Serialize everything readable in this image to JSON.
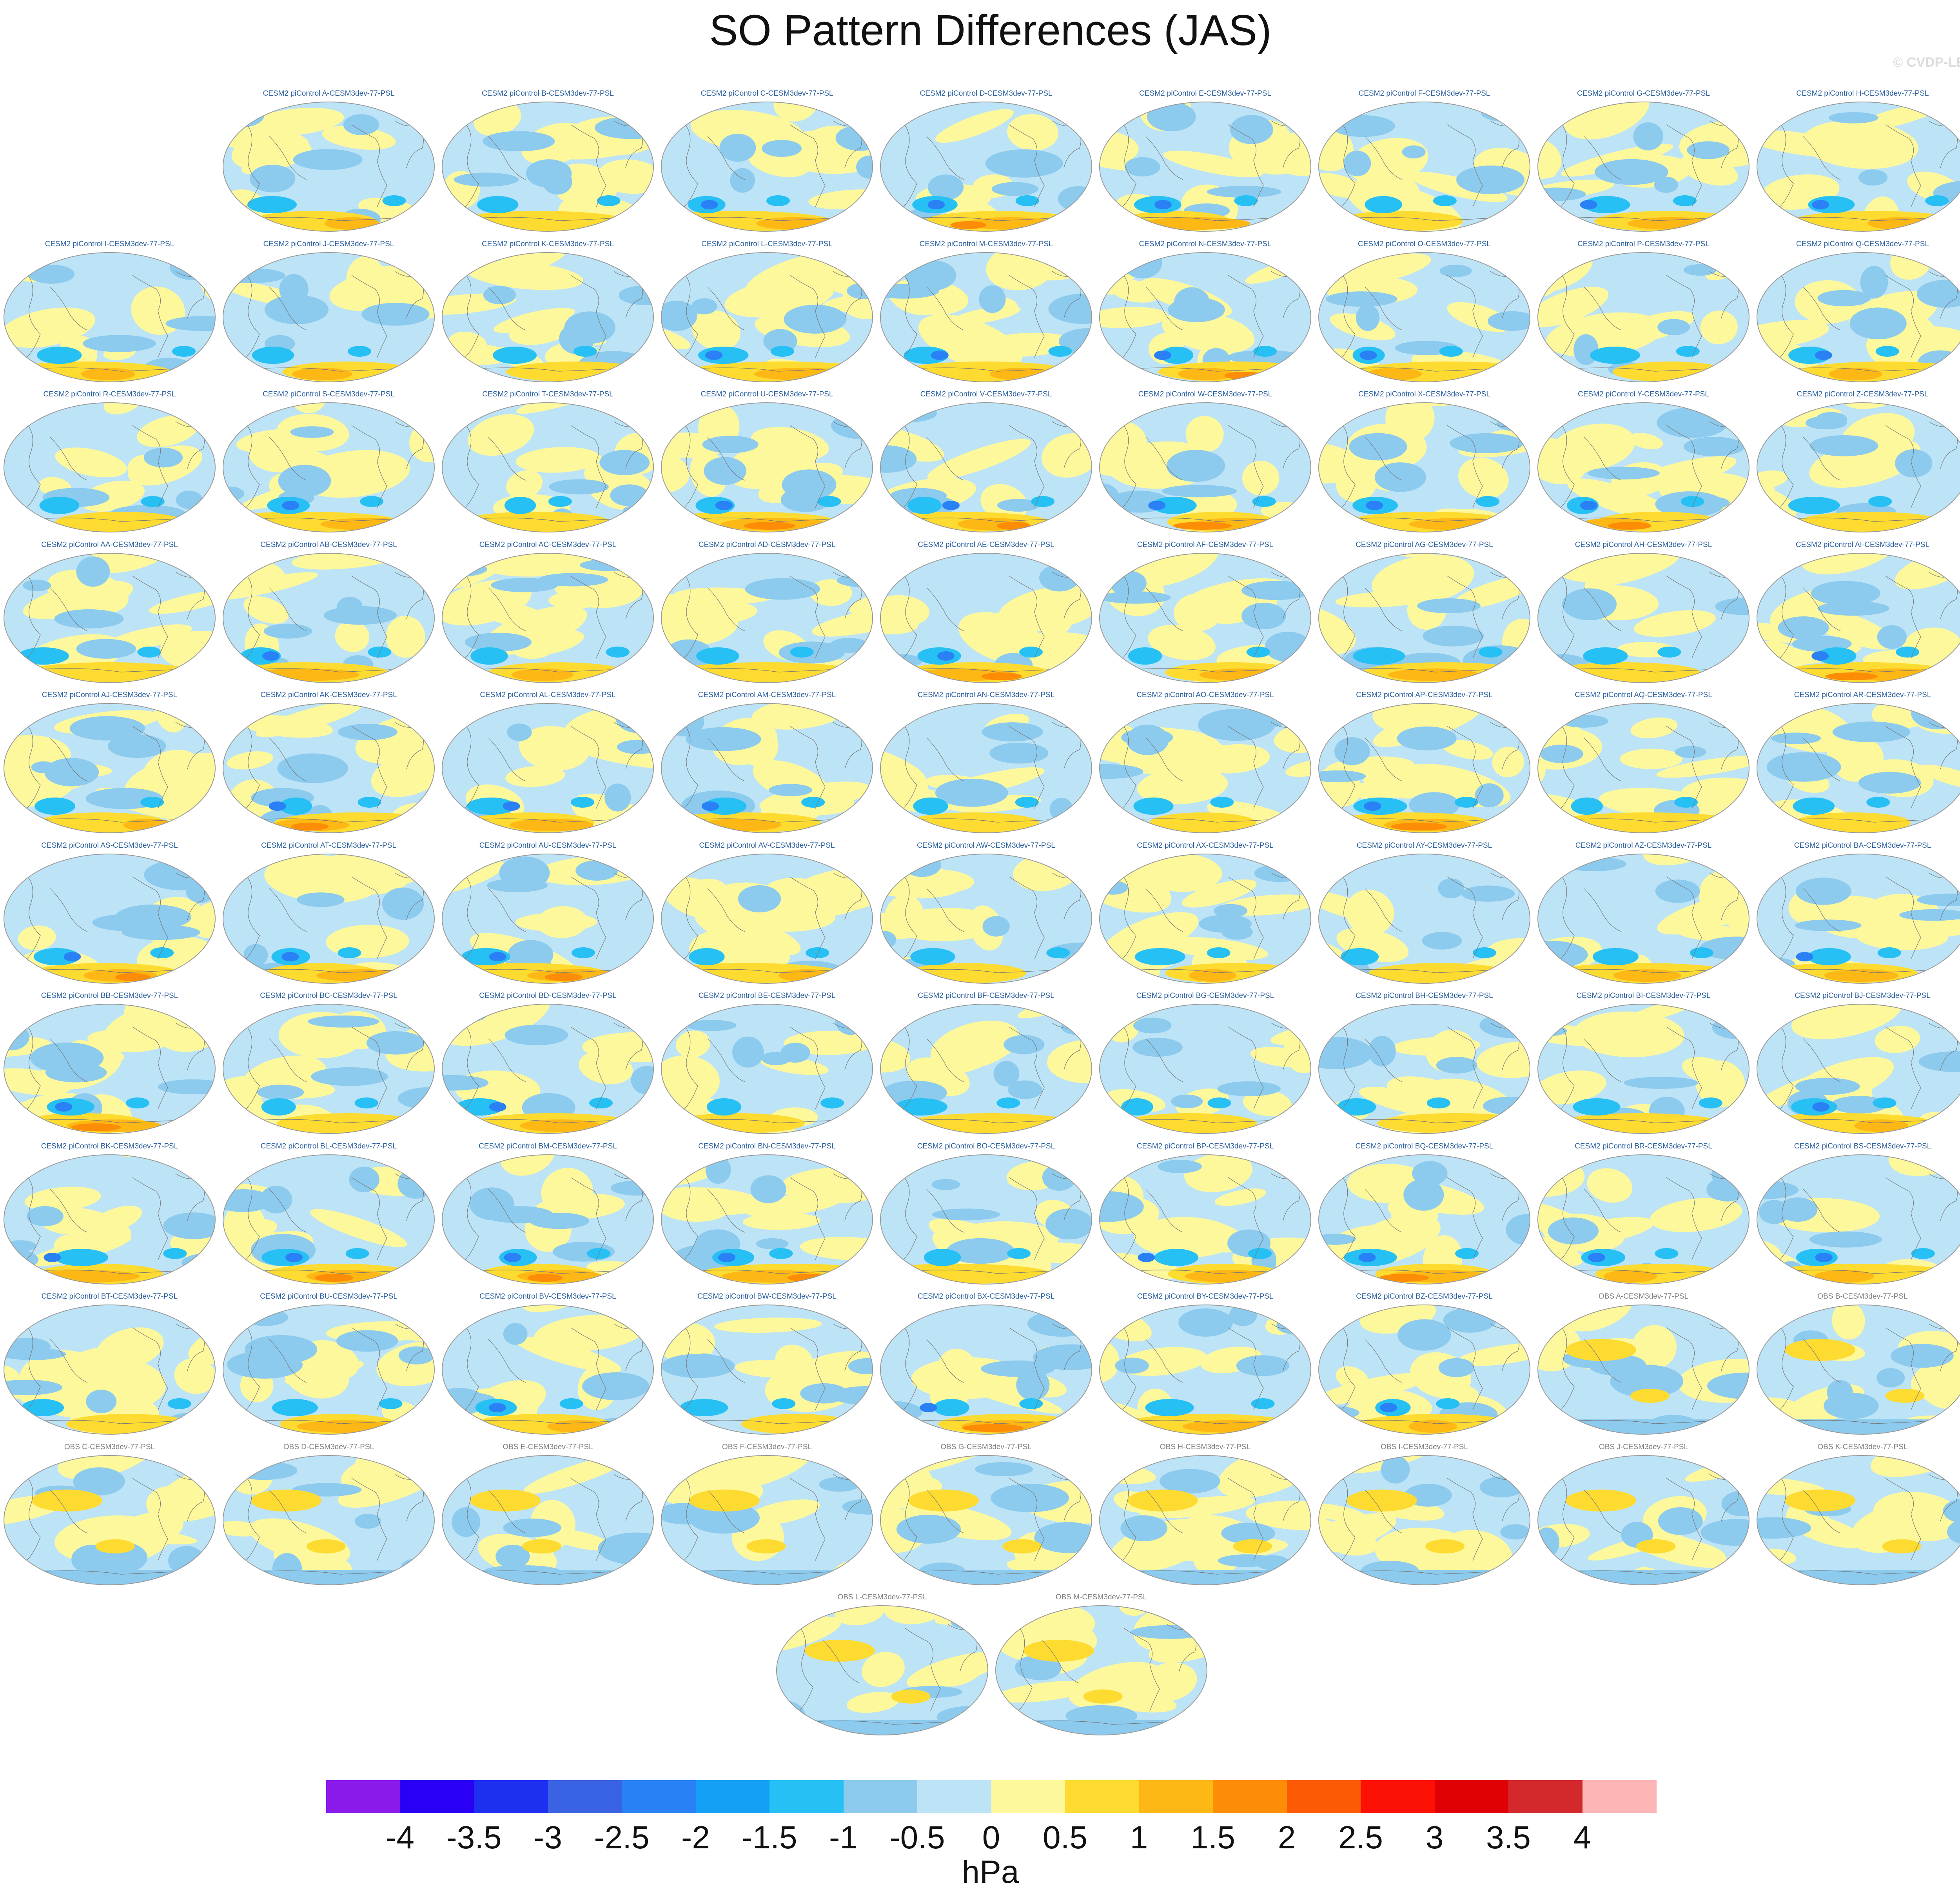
{
  "title": "SO Pattern Differences (JAS)",
  "copyright": "© CVDP-LE",
  "chart_data": {
    "type": "heatmap",
    "projection": "robinson",
    "variable": "PSL",
    "panels": [
      "CESM2 piControl A-CESM3dev-77-PSL",
      "CESM2 piControl B-CESM3dev-77-PSL",
      "CESM2 piControl C-CESM3dev-77-PSL",
      "CESM2 piControl D-CESM3dev-77-PSL",
      "CESM2 piControl E-CESM3dev-77-PSL",
      "CESM2 piControl F-CESM3dev-77-PSL",
      "CESM2 piControl G-CESM3dev-77-PSL",
      "CESM2 piControl H-CESM3dev-77-PSL",
      "CESM2 piControl I-CESM3dev-77-PSL",
      "CESM2 piControl J-CESM3dev-77-PSL",
      "CESM2 piControl K-CESM3dev-77-PSL",
      "CESM2 piControl L-CESM3dev-77-PSL",
      "CESM2 piControl M-CESM3dev-77-PSL",
      "CESM2 piControl N-CESM3dev-77-PSL",
      "CESM2 piControl O-CESM3dev-77-PSL",
      "CESM2 piControl P-CESM3dev-77-PSL",
      "CESM2 piControl Q-CESM3dev-77-PSL",
      "CESM2 piControl R-CESM3dev-77-PSL",
      "CESM2 piControl S-CESM3dev-77-PSL",
      "CESM2 piControl T-CESM3dev-77-PSL",
      "CESM2 piControl U-CESM3dev-77-PSL",
      "CESM2 piControl V-CESM3dev-77-PSL",
      "CESM2 piControl W-CESM3dev-77-PSL",
      "CESM2 piControl X-CESM3dev-77-PSL",
      "CESM2 piControl Y-CESM3dev-77-PSL",
      "CESM2 piControl Z-CESM3dev-77-PSL",
      "CESM2 piControl AA-CESM3dev-77-PSL",
      "CESM2 piControl AB-CESM3dev-77-PSL",
      "CESM2 piControl AC-CESM3dev-77-PSL",
      "CESM2 piControl AD-CESM3dev-77-PSL",
      "CESM2 piControl AE-CESM3dev-77-PSL",
      "CESM2 piControl AF-CESM3dev-77-PSL",
      "CESM2 piControl AG-CESM3dev-77-PSL",
      "CESM2 piControl AH-CESM3dev-77-PSL",
      "CESM2 piControl AI-CESM3dev-77-PSL",
      "CESM2 piControl AJ-CESM3dev-77-PSL",
      "CESM2 piControl AK-CESM3dev-77-PSL",
      "CESM2 piControl AL-CESM3dev-77-PSL",
      "CESM2 piControl AM-CESM3dev-77-PSL",
      "CESM2 piControl AN-CESM3dev-77-PSL",
      "CESM2 piControl AO-CESM3dev-77-PSL",
      "CESM2 piControl AP-CESM3dev-77-PSL",
      "CESM2 piControl AQ-CESM3dev-77-PSL",
      "CESM2 piControl AR-CESM3dev-77-PSL",
      "CESM2 piControl AS-CESM3dev-77-PSL",
      "CESM2 piControl AT-CESM3dev-77-PSL",
      "CESM2 piControl AU-CESM3dev-77-PSL",
      "CESM2 piControl AV-CESM3dev-77-PSL",
      "CESM2 piControl AW-CESM3dev-77-PSL",
      "CESM2 piControl AX-CESM3dev-77-PSL",
      "CESM2 piControl AY-CESM3dev-77-PSL",
      "CESM2 piControl AZ-CESM3dev-77-PSL",
      "CESM2 piControl BA-CESM3dev-77-PSL",
      "CESM2 piControl BB-CESM3dev-77-PSL",
      "CESM2 piControl BC-CESM3dev-77-PSL",
      "CESM2 piControl BD-CESM3dev-77-PSL",
      "CESM2 piControl BE-CESM3dev-77-PSL",
      "CESM2 piControl BF-CESM3dev-77-PSL",
      "CESM2 piControl BG-CESM3dev-77-PSL",
      "CESM2 piControl BH-CESM3dev-77-PSL",
      "CESM2 piControl BI-CESM3dev-77-PSL",
      "CESM2 piControl BJ-CESM3dev-77-PSL",
      "CESM2 piControl BK-CESM3dev-77-PSL",
      "CESM2 piControl BL-CESM3dev-77-PSL",
      "CESM2 piControl BM-CESM3dev-77-PSL",
      "CESM2 piControl BN-CESM3dev-77-PSL",
      "CESM2 piControl BO-CESM3dev-77-PSL",
      "CESM2 piControl BP-CESM3dev-77-PSL",
      "CESM2 piControl BQ-CESM3dev-77-PSL",
      "CESM2 piControl BR-CESM3dev-77-PSL",
      "CESM2 piControl BS-CESM3dev-77-PSL",
      "CESM2 piControl BT-CESM3dev-77-PSL",
      "CESM2 piControl BU-CESM3dev-77-PSL",
      "CESM2 piControl BV-CESM3dev-77-PSL",
      "CESM2 piControl BW-CESM3dev-77-PSL",
      "CESM2 piControl BX-CESM3dev-77-PSL",
      "CESM2 piControl BY-CESM3dev-77-PSL",
      "CESM2 piControl BZ-CESM3dev-77-PSL",
      "OBS A-CESM3dev-77-PSL",
      "OBS B-CESM3dev-77-PSL",
      "OBS C-CESM3dev-77-PSL",
      "OBS D-CESM3dev-77-PSL",
      "OBS E-CESM3dev-77-PSL",
      "OBS F-CESM3dev-77-PSL",
      "OBS G-CESM3dev-77-PSL",
      "OBS H-CESM3dev-77-PSL",
      "OBS I-CESM3dev-77-PSL",
      "OBS J-CESM3dev-77-PSL",
      "OBS K-CESM3dev-77-PSL",
      "OBS L-CESM3dev-77-PSL",
      "OBS M-CESM3dev-77-PSL"
    ],
    "colorbar": {
      "unit": "hPa",
      "ticks": [
        "-4",
        "-3.5",
        "-3",
        "-2.5",
        "-2",
        "-1.5",
        "-1",
        "-0.5",
        "0",
        "0.5",
        "1",
        "1.5",
        "2",
        "2.5",
        "3",
        "3.5",
        "4"
      ],
      "colors": [
        "#8a1aec",
        "#2a00f5",
        "#1d30f0",
        "#3a63e3",
        "#2a80f5",
        "#14a0f5",
        "#26c0f5",
        "#8ccaee",
        "#bde3f6",
        "#fdf89c",
        "#fedb30",
        "#feb816",
        "#fd8d06",
        "#fd5a06",
        "#fd1104",
        "#df0103",
        "#d3292c",
        "#feb5b5"
      ]
    },
    "legend": "bottom"
  }
}
